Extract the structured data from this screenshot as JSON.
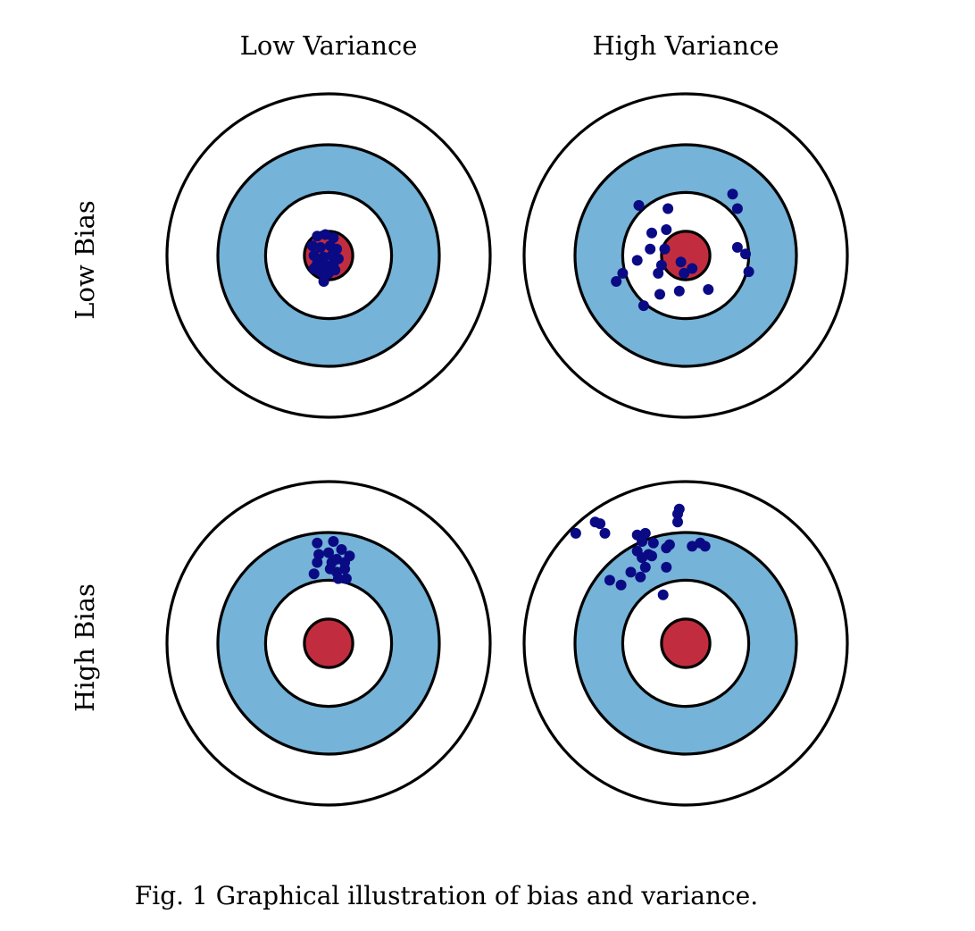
{
  "columns": [
    "Low Variance",
    "High Variance"
  ],
  "rows": [
    "Low Bias",
    "High Bias"
  ],
  "caption": "Fig. 1 Graphical illustration of bias and variance.",
  "colors": {
    "outer_ring": "#ffffff",
    "middle_ring": "#75b3d8",
    "inner_ring": "#ffffff",
    "bullseye": "#c12d3f",
    "dot": "#0a0a85",
    "stroke": "#000000"
  },
  "targets": [
    {
      "name": "low-bias-low-variance",
      "shots": [
        [
          -0.07,
          -0.12
        ],
        [
          -0.02,
          -0.13
        ],
        [
          0.03,
          -0.11
        ],
        [
          -0.1,
          -0.06
        ],
        [
          -0.05,
          -0.05
        ],
        [
          0.01,
          -0.06
        ],
        [
          0.05,
          -0.04
        ],
        [
          -0.09,
          0.0
        ],
        [
          -0.03,
          0.01
        ],
        [
          0.02,
          0.0
        ],
        [
          0.06,
          0.02
        ],
        [
          -0.07,
          0.05
        ],
        [
          -0.02,
          0.06
        ],
        [
          0.03,
          0.05
        ],
        [
          -0.05,
          0.1
        ],
        [
          0.0,
          0.11
        ],
        [
          -0.09,
          0.08
        ],
        [
          0.04,
          0.09
        ],
        [
          -0.03,
          0.16
        ]
      ]
    },
    {
      "name": "low-bias-high-variance",
      "shots": [
        [
          -0.29,
          -0.31
        ],
        [
          -0.11,
          -0.29
        ],
        [
          0.29,
          -0.38
        ],
        [
          0.32,
          -0.29
        ],
        [
          -0.21,
          -0.14
        ],
        [
          -0.12,
          -0.16
        ],
        [
          -0.22,
          -0.04
        ],
        [
          -0.13,
          -0.04
        ],
        [
          0.32,
          -0.05
        ],
        [
          0.37,
          -0.01
        ],
        [
          -0.39,
          0.11
        ],
        [
          -0.3,
          0.03
        ],
        [
          -0.17,
          0.11
        ],
        [
          -0.15,
          0.06
        ],
        [
          -0.03,
          0.04
        ],
        [
          -0.01,
          0.11
        ],
        [
          0.04,
          0.08
        ],
        [
          0.39,
          0.1
        ],
        [
          -0.43,
          0.16
        ],
        [
          -0.16,
          0.24
        ],
        [
          -0.04,
          0.22
        ],
        [
          0.14,
          0.21
        ],
        [
          -0.26,
          0.31
        ]
      ]
    },
    {
      "name": "high-bias-low-variance",
      "shots": [
        [
          -0.07,
          -0.62
        ],
        [
          0.03,
          -0.63
        ],
        [
          0.08,
          -0.58
        ],
        [
          -0.06,
          -0.55
        ],
        [
          0.0,
          -0.56
        ],
        [
          0.05,
          -0.52
        ],
        [
          -0.07,
          -0.5
        ],
        [
          0.02,
          -0.5
        ],
        [
          0.1,
          -0.5
        ],
        [
          0.13,
          -0.54
        ],
        [
          0.01,
          -0.46
        ],
        [
          0.1,
          -0.46
        ],
        [
          -0.09,
          -0.43
        ],
        [
          0.11,
          -0.4
        ],
        [
          0.06,
          -0.4
        ],
        [
          0.05,
          -0.44
        ]
      ]
    },
    {
      "name": "high-bias-high-variance",
      "shots": [
        [
          -0.56,
          -0.75
        ],
        [
          -0.53,
          -0.74
        ],
        [
          -0.5,
          -0.68
        ],
        [
          -0.68,
          -0.68
        ],
        [
          -0.3,
          -0.67
        ],
        [
          -0.25,
          -0.68
        ],
        [
          -0.27,
          -0.63
        ],
        [
          -0.2,
          -0.62
        ],
        [
          -0.12,
          -0.59
        ],
        [
          -0.3,
          -0.57
        ],
        [
          -0.23,
          -0.55
        ],
        [
          -0.27,
          -0.53
        ],
        [
          -0.21,
          -0.54
        ],
        [
          -0.25,
          -0.47
        ],
        [
          -0.12,
          -0.47
        ],
        [
          -0.34,
          -0.44
        ],
        [
          -0.28,
          -0.41
        ],
        [
          -0.47,
          -0.39
        ],
        [
          -0.4,
          -0.36
        ],
        [
          -0.14,
          -0.3
        ],
        [
          0.04,
          -0.6
        ],
        [
          0.09,
          -0.62
        ],
        [
          0.12,
          -0.6
        ],
        [
          -0.1,
          -0.61
        ],
        [
          -0.05,
          -0.75
        ],
        [
          -0.04,
          -0.83
        ],
        [
          -0.05,
          -0.8
        ]
      ]
    }
  ]
}
